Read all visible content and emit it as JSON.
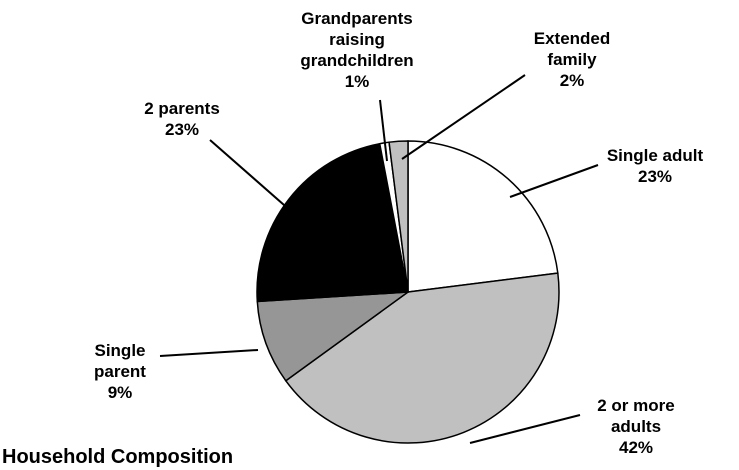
{
  "chart_data": {
    "type": "pie",
    "title": "Household Composition",
    "categories": [
      "Single adult",
      "2 or more adults",
      "Single parent",
      "2 parents",
      "Grandparents raising grandchildren",
      "Extended family"
    ],
    "values": [
      23,
      42,
      9,
      23,
      1,
      2
    ],
    "value_labels": [
      "23%",
      "42%",
      "9%",
      "23%",
      "1%",
      "2%"
    ],
    "colors": [
      "#ffffff",
      "#c0c0c0",
      "#969696",
      "#000000",
      "#ffffff",
      "#c0c0c0"
    ]
  }
}
